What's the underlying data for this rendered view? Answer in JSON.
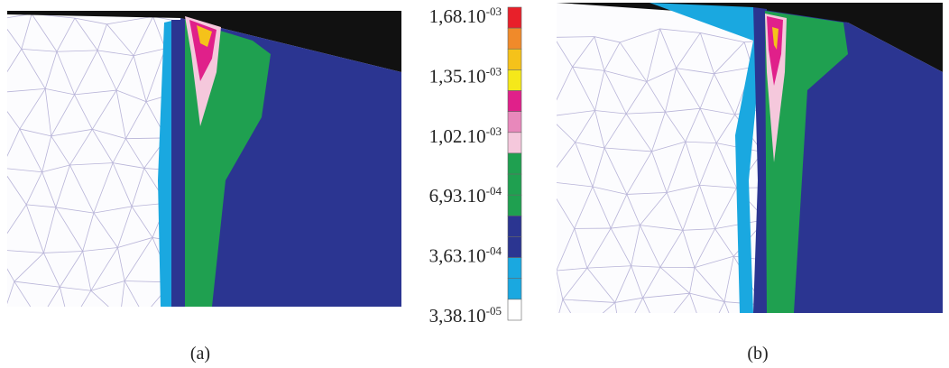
{
  "colorbar": {
    "colors": [
      "#e8202a",
      "#f08a2a",
      "#f5c21a",
      "#f5e81a",
      "#e0208a",
      "#e888bb",
      "#f5c8dc",
      "#1fa050",
      "#1fa050",
      "#1fa050",
      "#2b3591",
      "#2b3591",
      "#1aa8e0",
      "#1aa8e0",
      "#ffffff"
    ],
    "labels": [
      {
        "base": "1,68.10",
        "exp": "-03"
      },
      {
        "base": "1,35.10",
        "exp": "-03"
      },
      {
        "base": "1,02.10",
        "exp": "-03"
      },
      {
        "base": "6,93.10",
        "exp": "-04"
      },
      {
        "base": "3,63.10",
        "exp": "-04"
      },
      {
        "base": "3,38.10",
        "exp": "-05"
      }
    ]
  },
  "captions": [
    "(a)",
    "(b)"
  ]
}
